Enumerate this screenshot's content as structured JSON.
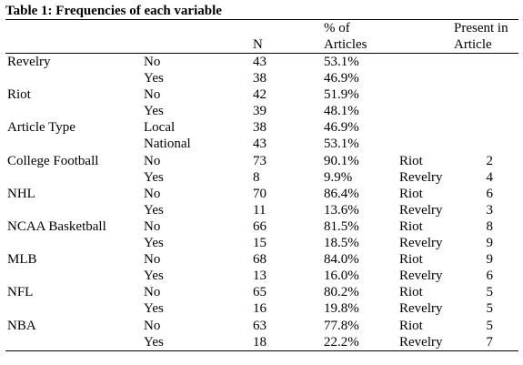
{
  "title": "Table 1: Frequencies of each variable",
  "headers": {
    "n": "N",
    "pct_line1": "% of",
    "pct_line2": "Articles",
    "present_line1": "Present in",
    "present_line2": "Article"
  },
  "rows": [
    {
      "variable": "Revelry",
      "level": "No",
      "n": "43",
      "pct": "53.1%",
      "present": "",
      "count": ""
    },
    {
      "variable": "",
      "level": "Yes",
      "n": "38",
      "pct": "46.9%",
      "present": "",
      "count": ""
    },
    {
      "variable": "Riot",
      "level": "No",
      "n": "42",
      "pct": "51.9%",
      "present": "",
      "count": ""
    },
    {
      "variable": "",
      "level": "Yes",
      "n": "39",
      "pct": "48.1%",
      "present": "",
      "count": ""
    },
    {
      "variable": "Article Type",
      "level": "Local",
      "n": "38",
      "pct": "46.9%",
      "present": "",
      "count": ""
    },
    {
      "variable": "",
      "level": "National",
      "n": "43",
      "pct": "53.1%",
      "present": "",
      "count": ""
    },
    {
      "variable": "College Football",
      "level": "No",
      "n": "73",
      "pct": "90.1%",
      "present": "Riot",
      "count": "2"
    },
    {
      "variable": "",
      "level": "Yes",
      "n": "8",
      "pct": "9.9%",
      "present": "Revelry",
      "count": "4"
    },
    {
      "variable": "NHL",
      "level": "No",
      "n": "70",
      "pct": "86.4%",
      "present": "Riot",
      "count": "6"
    },
    {
      "variable": "",
      "level": "Yes",
      "n": "11",
      "pct": "13.6%",
      "present": "Revelry",
      "count": "3"
    },
    {
      "variable": "NCAA Basketball",
      "level": "No",
      "n": "66",
      "pct": "81.5%",
      "present": "Riot",
      "count": "8"
    },
    {
      "variable": "",
      "level": "Yes",
      "n": "15",
      "pct": "18.5%",
      "present": "Revelry",
      "count": "9"
    },
    {
      "variable": "MLB",
      "level": "No",
      "n": "68",
      "pct": "84.0%",
      "present": "Riot",
      "count": "9"
    },
    {
      "variable": "",
      "level": "Yes",
      "n": "13",
      "pct": "16.0%",
      "present": "Revelry",
      "count": "6"
    },
    {
      "variable": "NFL",
      "level": "No",
      "n": "65",
      "pct": "80.2%",
      "present": "Riot",
      "count": "5"
    },
    {
      "variable": "",
      "level": "Yes",
      "n": "16",
      "pct": "19.8%",
      "present": "Revelry",
      "count": "5"
    },
    {
      "variable": "NBA",
      "level": "No",
      "n": "63",
      "pct": "77.8%",
      "present": "Riot",
      "count": "5"
    },
    {
      "variable": "",
      "level": "Yes",
      "n": "18",
      "pct": "22.2%",
      "present": "Revelry",
      "count": "7"
    }
  ]
}
